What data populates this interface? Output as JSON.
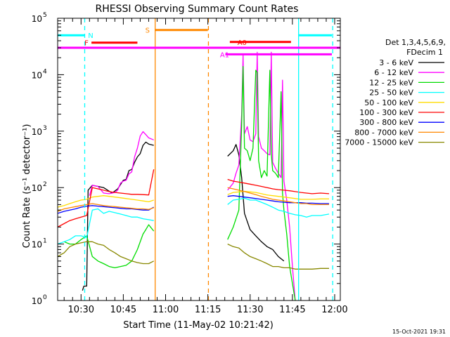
{
  "chart_data": {
    "type": "line",
    "title": "RHESSI Observing Summary Count Rates",
    "xlabel": "Start Time (11-May-02 10:21:42)",
    "ylabel": "Count Rate (s⁻¹ detector⁻¹)",
    "footer": "15-Oct-2021 19:31",
    "y_scale": "log",
    "ylim": [
      1,
      100000
    ],
    "xlim_min": [
      21.7,
      122
    ],
    "x_ticks": [
      {
        "value": 30,
        "label": "10:30"
      },
      {
        "value": 45,
        "label": "10:45"
      },
      {
        "value": 60,
        "label": "11:00"
      },
      {
        "value": 75,
        "label": "11:15"
      },
      {
        "value": 90,
        "label": "11:30"
      },
      {
        "value": 105,
        "label": "11:45"
      },
      {
        "value": 120,
        "label": "12:00"
      }
    ],
    "y_ticks": [
      {
        "value": 1,
        "base": "10",
        "exp": "0"
      },
      {
        "value": 10,
        "base": "10",
        "exp": "1"
      },
      {
        "value": 100,
        "base": "10",
        "exp": "2"
      },
      {
        "value": 1000,
        "base": "10",
        "exp": "3"
      },
      {
        "value": 10000,
        "base": "10",
        "exp": "4"
      },
      {
        "value": 100000,
        "base": "10",
        "exp": "5"
      }
    ],
    "legend": {
      "header1": "Det 1,3,4,5,6,9,",
      "header2": "FDecim 1",
      "position": "right"
    },
    "series": [
      {
        "name": "3 - 6 keV",
        "color": "#000000",
        "x": [
          21.7,
          30,
          30.5,
          31,
          32,
          32.5,
          34,
          36,
          38,
          41,
          43,
          45,
          46,
          47,
          48,
          49,
          50,
          51,
          52,
          53,
          54,
          55.8,
          63,
          74.8,
          81,
          82,
          84,
          85,
          86,
          87,
          88,
          89,
          90,
          92,
          94,
          96,
          98,
          100,
          102,
          104
        ],
        "y": [
          null,
          null,
          1.5,
          1.8,
          1.8,
          90,
          110,
          105,
          100,
          80,
          95,
          135,
          140,
          200,
          210,
          280,
          350,
          400,
          560,
          640,
          590,
          560,
          null,
          null,
          null,
          360,
          450,
          580,
          380,
          150,
          35,
          25,
          18,
          14,
          11,
          9,
          8,
          6,
          5,
          null
        ]
      },
      {
        "name": "6 - 12 keV",
        "color": "#ff00ff",
        "x": [
          21.7,
          24,
          26,
          28,
          30,
          31,
          32,
          33,
          34,
          36,
          38,
          40,
          42,
          43,
          44,
          45,
          46,
          47,
          48,
          49,
          50,
          51,
          52,
          53,
          54,
          55.8,
          63,
          74.8,
          81,
          82,
          84,
          85,
          86,
          87,
          87.5,
          88,
          89,
          90,
          91,
          92,
          92.5,
          93,
          94,
          95,
          96,
          97,
          97.5,
          98,
          99,
          100,
          101,
          101.5,
          102,
          103,
          104,
          105,
          106
        ],
        "y": [
          null,
          null,
          null,
          null,
          null,
          null,
          null,
          72,
          110,
          105,
          80,
          78,
          82,
          90,
          120,
          130,
          135,
          175,
          190,
          350,
          500,
          820,
          980,
          870,
          760,
          700,
          null,
          null,
          null,
          90,
          120,
          180,
          250,
          2000,
          22000,
          900,
          1200,
          700,
          650,
          900,
          25000,
          800,
          500,
          450,
          400,
          380,
          25000,
          280,
          220,
          180,
          150,
          8000,
          130,
          60,
          20,
          4,
          1
        ]
      },
      {
        "name": "12 - 25 keV",
        "color": "#00dd00",
        "x": [
          21.7,
          24,
          26,
          28,
          30,
          32,
          34,
          36,
          38,
          40,
          42,
          44,
          46,
          48,
          50,
          52,
          53,
          54,
          55,
          55.8,
          63,
          74.8,
          81,
          82,
          84,
          86,
          87,
          87.5,
          88,
          89,
          90,
          91,
          92,
          92.5,
          93,
          94,
          95,
          96,
          97,
          97.5,
          98,
          99,
          100,
          101,
          101.5,
          102,
          103,
          104,
          106
        ],
        "y": [
          null,
          11,
          10,
          10,
          12,
          14,
          6,
          5,
          4.5,
          4,
          3.8,
          4,
          4.2,
          5,
          8,
          15,
          18,
          22,
          19,
          17,
          null,
          null,
          null,
          12,
          20,
          40,
          1300,
          14000,
          500,
          450,
          300,
          500,
          12000,
          11000,
          300,
          150,
          200,
          160,
          12000,
          400,
          200,
          180,
          150,
          5000,
          80,
          40,
          15,
          4,
          1
        ]
      },
      {
        "name": "25 - 50 keV",
        "color": "#00ffff",
        "x": [
          21.7,
          24,
          26,
          28,
          30,
          32,
          34,
          36,
          38,
          40,
          42,
          44,
          46,
          48,
          50,
          52,
          54,
          55.8,
          63,
          74.8,
          81,
          82,
          84,
          86,
          88,
          90,
          92,
          94,
          96,
          98,
          100,
          102,
          104,
          106,
          108,
          110,
          112,
          115,
          118
        ],
        "y": [
          10,
          11,
          12,
          14,
          14,
          13,
          40,
          42,
          35,
          38,
          36,
          34,
          32,
          30,
          30,
          28,
          27,
          26,
          null,
          null,
          null,
          50,
          60,
          62,
          65,
          60,
          60,
          55,
          50,
          45,
          40,
          38,
          35,
          33,
          32,
          30,
          32,
          32,
          34
        ]
      },
      {
        "name": "50 - 100 keV",
        "color": "#ffdd00",
        "x": [
          21.7,
          24,
          26,
          28,
          30,
          32,
          34,
          36,
          38,
          40,
          42,
          44,
          46,
          48,
          50,
          52,
          54,
          55.8,
          63,
          74.8,
          81,
          82,
          84,
          86,
          88,
          90,
          92,
          94,
          96,
          98,
          100,
          102,
          104,
          106,
          108,
          110,
          112,
          115,
          118
        ],
        "y": [
          45,
          48,
          52,
          56,
          60,
          62,
          68,
          70,
          72,
          70,
          68,
          66,
          64,
          62,
          60,
          58,
          56,
          60,
          null,
          null,
          null,
          75,
          82,
          84,
          86,
          84,
          82,
          78,
          74,
          72,
          70,
          68,
          66,
          64,
          62,
          62,
          62,
          63,
          63
        ]
      },
      {
        "name": "100 - 300 keV",
        "color": "#ff0000",
        "x": [
          21.7,
          24,
          26,
          28,
          30,
          32,
          34,
          36,
          38,
          40,
          42,
          44,
          46,
          48,
          50,
          52,
          54,
          55.8,
          63,
          74.8,
          81,
          82,
          84,
          86,
          88,
          90,
          92,
          94,
          96,
          98,
          100,
          102,
          104,
          106,
          108,
          110,
          112,
          115,
          118
        ],
        "y": [
          20,
          23,
          26,
          28,
          30,
          32,
          100,
          95,
          90,
          85,
          82,
          80,
          78,
          76,
          76,
          75,
          74,
          210,
          null,
          null,
          null,
          140,
          130,
          125,
          120,
          115,
          110,
          105,
          100,
          95,
          92,
          90,
          88,
          85,
          82,
          80,
          78,
          80,
          78
        ]
      },
      {
        "name": "300 - 800 keV",
        "color": "#0000ff",
        "x": [
          21.7,
          24,
          26,
          28,
          30,
          32,
          34,
          36,
          38,
          40,
          42,
          44,
          46,
          48,
          50,
          52,
          54,
          55.8,
          63,
          74.8,
          81,
          82,
          84,
          86,
          88,
          90,
          92,
          94,
          96,
          98,
          100,
          102,
          104,
          106,
          108,
          110,
          112,
          115,
          118
        ],
        "y": [
          35,
          38,
          40,
          42,
          45,
          47,
          48,
          47,
          46,
          45,
          44,
          43,
          42,
          42,
          41,
          40,
          40,
          45,
          null,
          null,
          null,
          70,
          72,
          70,
          68,
          66,
          64,
          62,
          60,
          58,
          56,
          55,
          54,
          54,
          54,
          53,
          53,
          52,
          52
        ]
      },
      {
        "name": "800 - 7000 keV",
        "color": "#ff8800",
        "x": [
          21.7,
          24,
          26,
          28,
          30,
          32,
          34,
          36,
          38,
          40,
          42,
          44,
          46,
          48,
          50,
          52,
          54,
          55.8,
          63,
          74.8,
          81,
          82,
          84,
          86,
          88,
          90,
          92,
          94,
          96,
          98,
          100,
          102,
          104,
          106,
          108,
          110,
          112,
          115,
          118
        ],
        "y": [
          38,
          42,
          44,
          46,
          48,
          50,
          52,
          50,
          48,
          47,
          46,
          45,
          44,
          43,
          42,
          42,
          41,
          44,
          null,
          null,
          null,
          100,
          95,
          90,
          85,
          80,
          75,
          70,
          66,
          62,
          60,
          58,
          56,
          54,
          52,
          52,
          50,
          50,
          50
        ]
      },
      {
        "name": "7000 - 15000 keV",
        "color": "#888800",
        "x": [
          21.7,
          24,
          26,
          28,
          30,
          32,
          34,
          36,
          38,
          40,
          42,
          44,
          46,
          48,
          50,
          52,
          54,
          55.8,
          63,
          74.8,
          81,
          82,
          84,
          86,
          88,
          90,
          92,
          94,
          96,
          98,
          100,
          102,
          104,
          106,
          108,
          110,
          112,
          115,
          118
        ],
        "y": [
          6,
          7,
          9,
          10,
          10.5,
          11,
          11,
          10,
          9.5,
          8,
          7,
          6,
          5.5,
          5,
          4.7,
          4.5,
          4.5,
          5,
          null,
          null,
          null,
          10,
          9,
          8.5,
          7,
          6,
          5.5,
          5,
          4.5,
          4,
          4,
          3.8,
          3.8,
          3.6,
          3.6,
          3.6,
          3.6,
          3.7,
          3.7
        ]
      }
    ],
    "bands": [
      {
        "label": "N",
        "color": "#00ffff",
        "y": 50000,
        "segments": [
          [
            21.7,
            31.3
          ],
          [
            107.3,
            119
          ]
        ],
        "label_x": 32.5
      },
      {
        "label": "F",
        "color": "#ff0000",
        "y": 37000,
        "segments": [
          [
            33.7,
            50
          ]
        ],
        "label_x": 31.2
      },
      {
        "label": "S",
        "color": "#ff8800",
        "y": 62000,
        "segments": [
          [
            56.2,
            75
          ]
        ],
        "label_x": 52.8
      },
      {
        "label": "A0",
        "color": "#ff0000",
        "y": 38000,
        "segments": [
          [
            82.8,
            104.5
          ]
        ],
        "label_x": 85.5
      },
      {
        "label": "A1",
        "color": "#ff00ff",
        "y": 23000,
        "segments": [
          [
            81.2,
            119
          ]
        ],
        "label_x": 79.3
      },
      {
        "label": "",
        "color": "#ff00ff",
        "y": 30000,
        "segments": [
          [
            21.7,
            123
          ]
        ],
        "label_x": 0
      }
    ],
    "vlines": [
      {
        "x": 31.3,
        "color": "#00ffff",
        "style": "dashed"
      },
      {
        "x": 56.3,
        "color": "#ff8800",
        "style": "solid"
      },
      {
        "x": 75.2,
        "color": "#ff8800",
        "style": "dashed"
      },
      {
        "x": 107.2,
        "color": "#00ffff",
        "style": "solid"
      },
      {
        "x": 119.3,
        "color": "#00ffff",
        "style": "dashed"
      }
    ]
  }
}
